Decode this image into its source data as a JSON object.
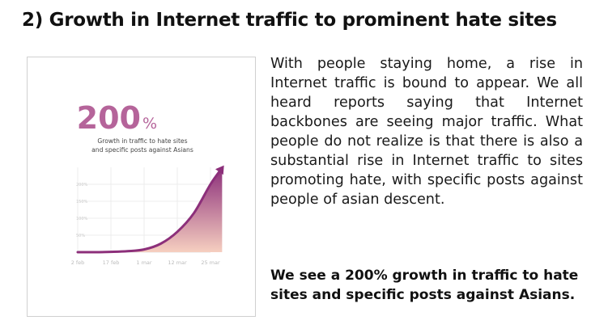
{
  "section": {
    "title": "2) Growth in Internet traffic to prominent hate sites"
  },
  "infographic": {
    "stat_number": "200",
    "stat_unit": "%",
    "caption_line1": "Growth in traffic to hate sites",
    "caption_line2": "and specific posts against Asians",
    "accent_color": "#b5649a",
    "gradient_top": "#8c2f7a",
    "gradient_bottom": "#f6cfc0"
  },
  "chart_data": {
    "type": "area",
    "categories": [
      "2 feb",
      "17 feb",
      "1 mar",
      "12 mar",
      "25 mar"
    ],
    "y_ticks": [
      "200%",
      "150%",
      "100%",
      "50%"
    ],
    "ylim": [
      0,
      250
    ],
    "points": [
      {
        "x": 0,
        "y": 0
      },
      {
        "x": 0.5,
        "y": 0
      },
      {
        "x": 1,
        "y": 1
      },
      {
        "x": 1.5,
        "y": 3
      },
      {
        "x": 2,
        "y": 8
      },
      {
        "x": 2.5,
        "y": 25
      },
      {
        "x": 3,
        "y": 60
      },
      {
        "x": 3.5,
        "y": 115
      },
      {
        "x": 4,
        "y": 200
      },
      {
        "x": 4.35,
        "y": 248
      }
    ],
    "title": "",
    "xlabel": "",
    "ylabel": "",
    "grid": true
  },
  "body": {
    "paragraph": "With people staying home, a rise in Internet traffic is bound to appear. We all heard reports saying that Internet backbones are seeing major traffic. What people do not realize is that there is also a substantial rise in Internet traffic to sites promoting hate, with specific posts against people of asian descent.",
    "summary": "We see a 200% growth in traffic to hate sites and specific posts against Asians."
  }
}
